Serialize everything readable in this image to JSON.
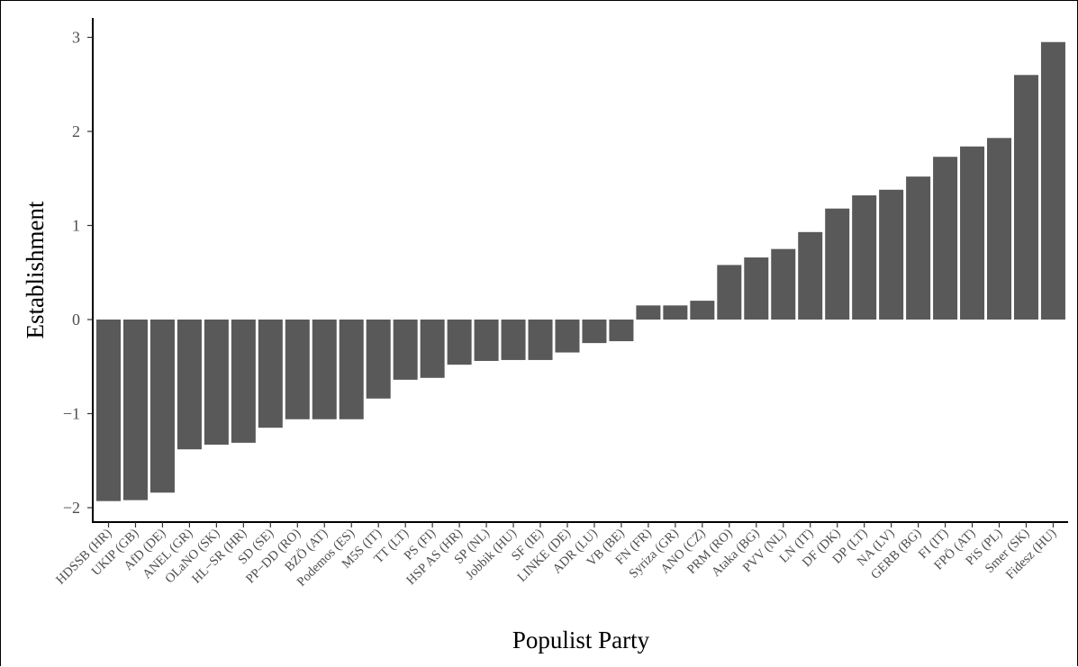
{
  "chart_data": {
    "type": "bar",
    "xlabel": "Populist Party",
    "ylabel": "Establishment",
    "ylim": [
      -2.1,
      3.1
    ],
    "yticks": [
      -2,
      -1,
      0,
      1,
      2,
      3
    ],
    "ytick_labels": [
      "−2",
      "−1",
      "0",
      "1",
      "2",
      "3"
    ],
    "grid": false,
    "bar_color": "#595959",
    "categories": [
      "HDSSB (HR)",
      "UKIP (GB)",
      "AfD (DE)",
      "ANEL (GR)",
      "OLaNO (SK)",
      "HL−SR (HR)",
      "SD (SE)",
      "PP−DD (RO)",
      "BZÖ (AT)",
      "Podemos (ES)",
      "M5S (IT)",
      "TT (LT)",
      "PS (FI)",
      "HSP AS (HR)",
      "SP (NL)",
      "Jobbik (HU)",
      "SF (IE)",
      "LINKE (DE)",
      "ADR (LU)",
      "VB (BE)",
      "FN (FR)",
      "Syriza (GR)",
      "ANO (CZ)",
      "PRM (RO)",
      "Ataka (BG)",
      "PVV (NL)",
      "LN (IT)",
      "DF (DK)",
      "DP (LT)",
      "NA (LV)",
      "GERB (BG)",
      "FI (IT)",
      "FPÖ (AT)",
      "PiS (PL)",
      "Smer (SK)",
      "Fidesz (HU)"
    ],
    "values": [
      -1.93,
      -1.92,
      -1.84,
      -1.38,
      -1.33,
      -1.31,
      -1.15,
      -1.06,
      -1.06,
      -1.06,
      -0.84,
      -0.64,
      -0.62,
      -0.48,
      -0.44,
      -0.43,
      -0.43,
      -0.35,
      -0.25,
      -0.23,
      0.15,
      0.15,
      0.2,
      0.58,
      0.66,
      0.75,
      0.93,
      1.18,
      1.32,
      1.38,
      1.52,
      1.73,
      1.84,
      1.93,
      2.6,
      2.95
    ]
  }
}
